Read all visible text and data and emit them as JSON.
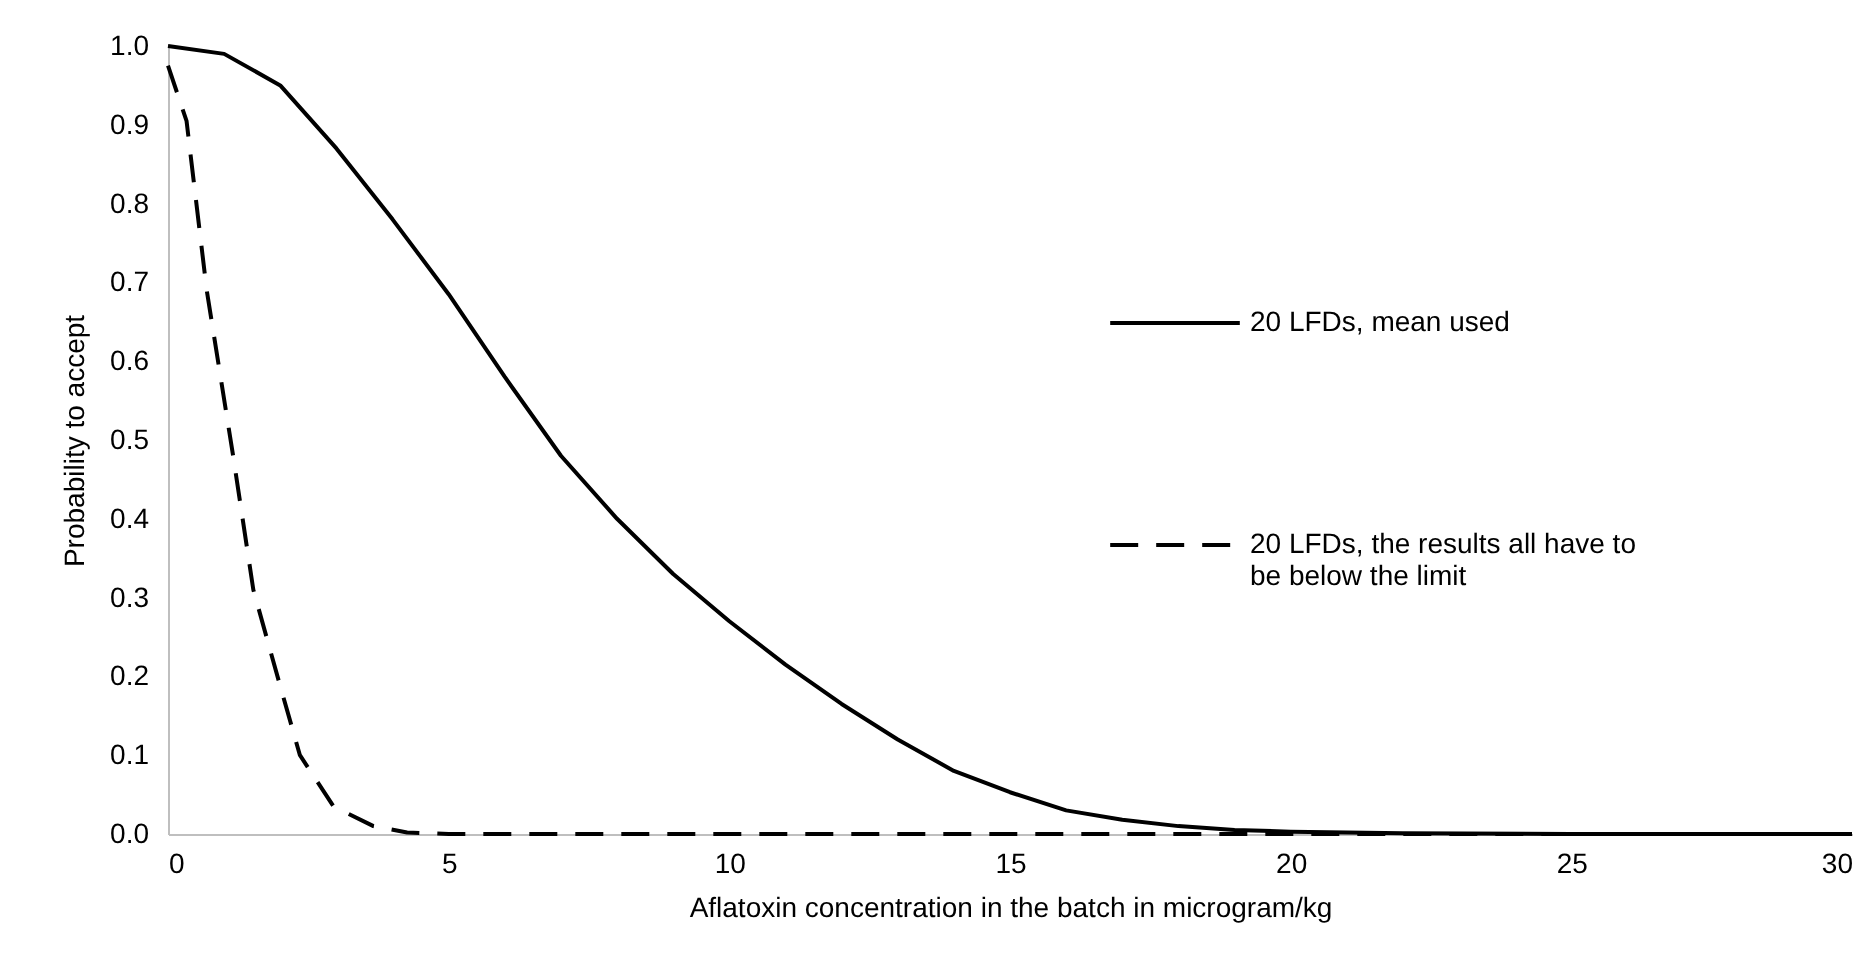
{
  "chart_data": {
    "type": "line",
    "xlabel": "Aflatoxin concentration in the batch in microgram/kg",
    "ylabel": "Probability to accept",
    "xlim": [
      0,
      30
    ],
    "xticks": [
      0,
      5,
      10,
      15,
      20,
      25,
      30
    ],
    "ylim": [
      0,
      1
    ],
    "yticks": [
      {
        "value": 0,
        "label": "0.0"
      },
      {
        "value": 0.1,
        "label": "0.1"
      },
      {
        "value": 0.2,
        "label": "0.2"
      },
      {
        "value": 0.3,
        "label": "0.3"
      },
      {
        "value": 0.4,
        "label": "0.4"
      },
      {
        "value": 0.5,
        "label": "0.5"
      },
      {
        "value": 0.6,
        "label": "0.6"
      },
      {
        "value": 0.7,
        "label": "0.7"
      },
      {
        "value": 0.8,
        "label": "0.8"
      },
      {
        "value": 0.9,
        "label": "0.9"
      },
      {
        "value": 1,
        "label": "1.0"
      }
    ],
    "grid": false,
    "legend": "right",
    "marker": "none",
    "series": [
      {
        "name": "20 LFDs, mean used",
        "color": "#000000",
        "line_style": "solid",
        "x": [
          0,
          1,
          2,
          3,
          4,
          5,
          6,
          7,
          8,
          9,
          10,
          11,
          12,
          13,
          14,
          15,
          16,
          17,
          18,
          19,
          20,
          22,
          25,
          30
        ],
        "values": [
          1.0,
          0.99,
          0.95,
          0.87,
          0.78,
          0.685,
          0.58,
          0.48,
          0.4,
          0.33,
          0.27,
          0.215,
          0.165,
          0.12,
          0.08,
          0.053,
          0.03,
          0.018,
          0.01,
          0.005,
          0.003,
          0.001,
          0,
          0
        ]
      },
      {
        "name": "20 LFDs, the results all have to be below the limit",
        "color": "#000000",
        "line_style": "dashed",
        "x": [
          0,
          0.33,
          0.69,
          1.16,
          1.52,
          1.99,
          2.35,
          2.95,
          3.66,
          4.26,
          5,
          10,
          20,
          30
        ],
        "values": [
          0.975,
          0.905,
          0.69,
          0.48,
          0.31,
          0.19,
          0.1,
          0.035,
          0.01,
          0.002,
          0,
          0,
          0,
          0
        ]
      }
    ]
  }
}
